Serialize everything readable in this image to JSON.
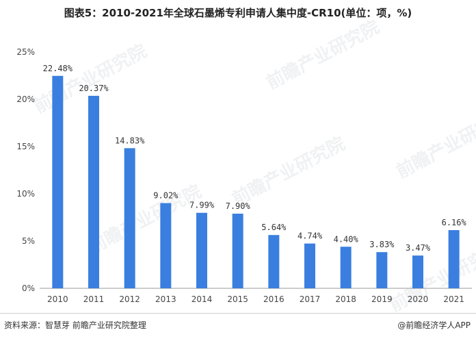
{
  "title": "图表5：2010-2021年全球石墨烯专利申请人集中度-CR10(单位：项，%)",
  "watermark_text": "前瞻产业研究院",
  "source": "资料来源：智慧芽 前瞻产业研究院整理",
  "brand": "@前瞻经济学人APP",
  "colors": {
    "bar": "#3a7fe0",
    "axis": "#999999"
  },
  "chart_data": {
    "type": "bar",
    "categories": [
      "2010",
      "2011",
      "2012",
      "2013",
      "2014",
      "2015",
      "2016",
      "2017",
      "2018",
      "2019",
      "2020",
      "2021"
    ],
    "values": [
      22.48,
      20.37,
      14.83,
      9.02,
      7.99,
      7.9,
      5.64,
      4.74,
      4.4,
      3.83,
      3.47,
      6.16
    ],
    "value_labels": [
      "22.48%",
      "20.37%",
      "14.83%",
      "9.02%",
      "7.99%",
      "7.90%",
      "5.64%",
      "4.74%",
      "4.40%",
      "3.83%",
      "3.47%",
      "6.16%"
    ],
    "yticks": [
      0,
      5,
      10,
      15,
      20,
      25
    ],
    "ytick_labels": [
      "0%",
      "5%",
      "10%",
      "15%",
      "20%",
      "25%"
    ],
    "ylim": [
      0,
      25
    ],
    "grid": false,
    "legend": "none"
  }
}
